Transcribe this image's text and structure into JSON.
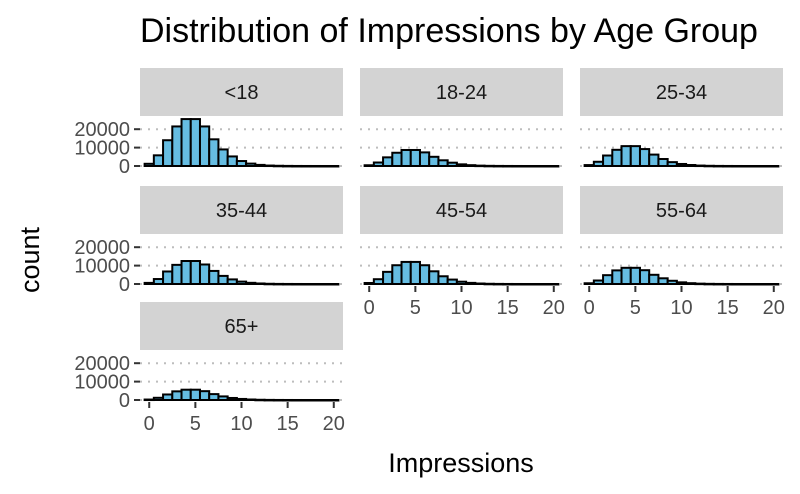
{
  "chart_data": {
    "type": "bar",
    "title": "Distribution of Impressions by Age Group",
    "xlabel": "Impressions",
    "ylabel": "count",
    "xlim": [
      -1,
      21
    ],
    "ylim": [
      0,
      25000
    ],
    "xticks": [
      0,
      5,
      10,
      15,
      20
    ],
    "yticks": [
      0,
      10000,
      20000
    ],
    "grid": true,
    "bar_color": "#66bde2",
    "strip_color": "#d3d3d3",
    "bins": [
      0,
      1,
      2,
      3,
      4,
      5,
      6,
      7,
      8,
      9,
      10,
      11,
      12,
      13,
      14,
      15,
      16,
      17,
      18,
      19,
      20
    ],
    "series": [
      {
        "name": "<18",
        "values": [
          1200,
          5800,
          14000,
          21500,
          25500,
          25500,
          21500,
          14500,
          9000,
          5200,
          2700,
          1300,
          600,
          250,
          120,
          50,
          20,
          10,
          5,
          2,
          1
        ]
      },
      {
        "name": "18-24",
        "values": [
          400,
          1900,
          4700,
          7200,
          8700,
          8700,
          7400,
          5000,
          3100,
          1800,
          900,
          450,
          200,
          90,
          40,
          18,
          8,
          3,
          1,
          0,
          0
        ]
      },
      {
        "name": "25-34",
        "values": [
          500,
          2300,
          5700,
          8800,
          10800,
          10800,
          9200,
          6200,
          3800,
          2100,
          1100,
          540,
          240,
          110,
          45,
          20,
          8,
          3,
          1,
          0,
          0
        ]
      },
      {
        "name": "35-44",
        "values": [
          600,
          2700,
          6800,
          10400,
          12500,
          12500,
          10600,
          7100,
          4400,
          2500,
          1300,
          640,
          290,
          120,
          50,
          22,
          9,
          3,
          1,
          0,
          0
        ]
      },
      {
        "name": "45-54",
        "values": [
          550,
          2600,
          6600,
          10200,
          12000,
          12000,
          10200,
          6900,
          4200,
          2400,
          1250,
          610,
          270,
          115,
          48,
          20,
          8,
          3,
          1,
          0,
          0
        ]
      },
      {
        "name": "55-64",
        "values": [
          400,
          1900,
          4800,
          7400,
          8800,
          8800,
          7500,
          5000,
          3100,
          1750,
          900,
          440,
          195,
          85,
          35,
          15,
          6,
          2,
          1,
          0,
          0
        ]
      },
      {
        "name": "65+",
        "values": [
          250,
          1200,
          3000,
          4700,
          5600,
          5600,
          4800,
          3200,
          1950,
          1100,
          570,
          280,
          125,
          55,
          22,
          9,
          4,
          1,
          0,
          0,
          0
        ]
      }
    ]
  }
}
